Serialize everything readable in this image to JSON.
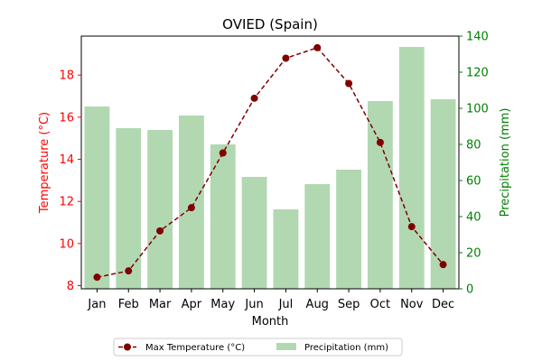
{
  "chart_data": {
    "type": "bar+line",
    "title": "OVIED (Spain)",
    "xlabel": "Month",
    "categories": [
      "Jan",
      "Feb",
      "Mar",
      "Apr",
      "May",
      "Jun",
      "Jul",
      "Aug",
      "Sep",
      "Oct",
      "Nov",
      "Dec"
    ],
    "left_axis": {
      "label": "Temperature (°C)",
      "color": "#ff0000",
      "range": [
        7.85,
        19.85
      ],
      "ticks": [
        8,
        10,
        12,
        14,
        16,
        18
      ]
    },
    "right_axis": {
      "label": "Precipitation (mm)",
      "color": "#008000",
      "range": [
        0,
        140
      ],
      "ticks": [
        0,
        20,
        40,
        60,
        80,
        100,
        120,
        140
      ]
    },
    "series": [
      {
        "name": "Max Temperature (°C)",
        "type": "line",
        "axis": "left",
        "color": "#800000",
        "style": "dashed",
        "marker": "circle",
        "values": [
          8.4,
          8.7,
          10.6,
          11.7,
          14.3,
          16.9,
          18.8,
          19.3,
          17.6,
          14.8,
          10.8,
          9.0
        ]
      },
      {
        "name": "Precipitation (mm)",
        "type": "bar",
        "axis": "right",
        "color": "#b2d8b2",
        "values": [
          101,
          89,
          88,
          96,
          80,
          62,
          44,
          58,
          66,
          104,
          134,
          105
        ]
      }
    ],
    "legend": {
      "placement": "bottom-center"
    },
    "grid": false
  }
}
